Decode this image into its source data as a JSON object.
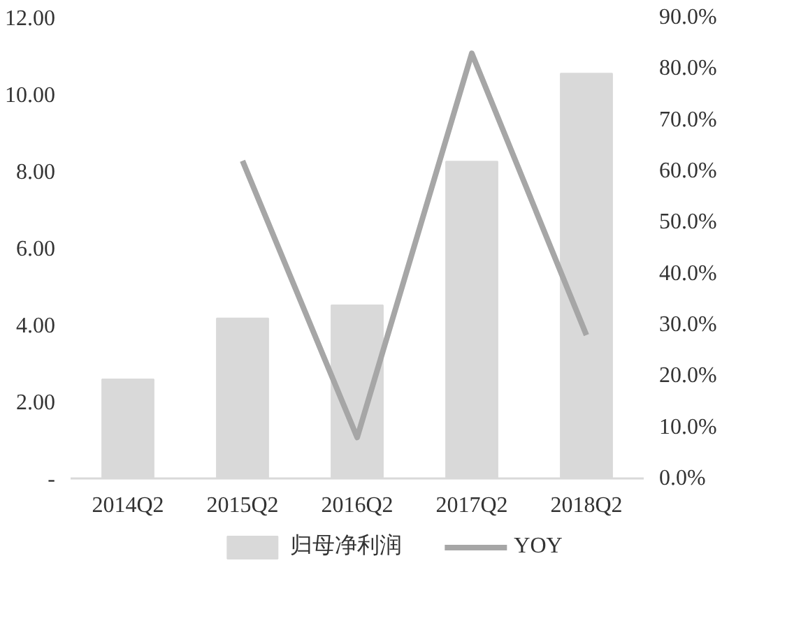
{
  "chart_data": {
    "type": "bar",
    "categories": [
      "2014Q2",
      "2015Q2",
      "2016Q2",
      "2017Q2",
      "2018Q2"
    ],
    "series": [
      {
        "name": "归母净利润",
        "color": "#d9d9d9",
        "values": [
          2.58,
          4.17,
          4.51,
          8.25,
          10.54
        ]
      },
      {
        "name": "YOY",
        "type": "line",
        "axis": "y2",
        "color": "#a6a6a6",
        "values": [
          null,
          62,
          8,
          83,
          28
        ]
      }
    ],
    "ylim": [
      0,
      12
    ],
    "yticks": [
      {
        "value": 0,
        "label": "-"
      },
      {
        "value": 2,
        "label": "2.00"
      },
      {
        "value": 4,
        "label": "4.00"
      },
      {
        "value": 6,
        "label": "6.00"
      },
      {
        "value": 8,
        "label": "8.00"
      },
      {
        "value": 10,
        "label": "10.00"
      },
      {
        "value": 12,
        "label": "12.00"
      }
    ],
    "y2lim": [
      0,
      90
    ],
    "y2ticks": [
      {
        "value": 0,
        "label": "0.0%"
      },
      {
        "value": 10,
        "label": "10.0%"
      },
      {
        "value": 20,
        "label": "20.0%"
      },
      {
        "value": 30,
        "label": "30.0%"
      },
      {
        "value": 40,
        "label": "40.0%"
      },
      {
        "value": 50,
        "label": "50.0%"
      },
      {
        "value": 60,
        "label": "60.0%"
      },
      {
        "value": 70,
        "label": "70.0%"
      },
      {
        "value": 80,
        "label": "80.0%"
      },
      {
        "value": 90,
        "label": "90.0%"
      }
    ],
    "grid": false,
    "legend": "bottom"
  }
}
